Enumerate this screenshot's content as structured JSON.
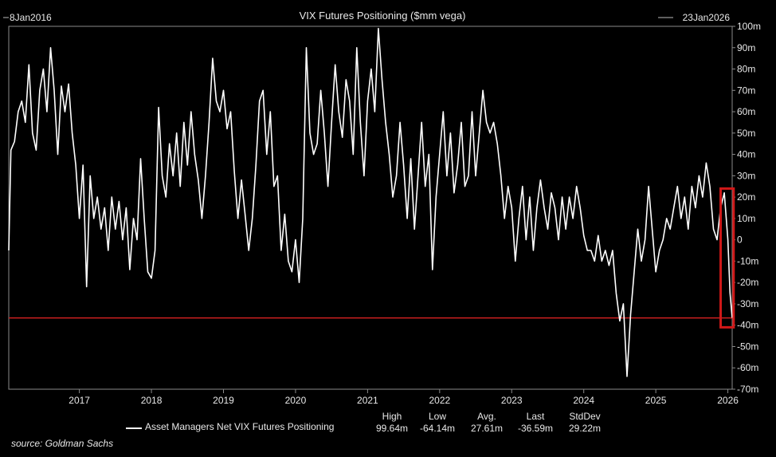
{
  "chart_data": {
    "type": "line",
    "title": "VIX Futures Positioning ($mm vega)",
    "start_label": "8Jan2016",
    "end_label": "23Jan2026",
    "x_range": [
      2016.02,
      2026.06
    ],
    "y_range": [
      -70,
      100
    ],
    "y_ticks": [
      "100m",
      "90m",
      "80m",
      "70m",
      "60m",
      "50m",
      "40m",
      "30m",
      "20m",
      "10m",
      "0",
      "-10m",
      "-20m",
      "-30m",
      "-40m",
      "-50m",
      "-60m",
      "-70m"
    ],
    "x_ticks": [
      "2017",
      "2018",
      "2019",
      "2020",
      "2021",
      "2022",
      "2023",
      "2024",
      "2025",
      "2026"
    ],
    "grid": false,
    "series": [
      {
        "name": "Asset Managers Net VIX Futures Positioning",
        "color": "#ffffff",
        "points": [
          [
            2016.02,
            -5
          ],
          [
            2016.05,
            42
          ],
          [
            2016.1,
            46
          ],
          [
            2016.15,
            60
          ],
          [
            2016.2,
            65
          ],
          [
            2016.25,
            55
          ],
          [
            2016.3,
            82
          ],
          [
            2016.35,
            50
          ],
          [
            2016.4,
            42
          ],
          [
            2016.45,
            70
          ],
          [
            2016.5,
            80
          ],
          [
            2016.55,
            60
          ],
          [
            2016.6,
            90
          ],
          [
            2016.65,
            70
          ],
          [
            2016.7,
            40
          ],
          [
            2016.75,
            72
          ],
          [
            2016.8,
            60
          ],
          [
            2016.85,
            73
          ],
          [
            2016.9,
            50
          ],
          [
            2016.95,
            35
          ],
          [
            2017.0,
            10
          ],
          [
            2017.05,
            35
          ],
          [
            2017.1,
            -22
          ],
          [
            2017.15,
            30
          ],
          [
            2017.2,
            10
          ],
          [
            2017.25,
            20
          ],
          [
            2017.3,
            5
          ],
          [
            2017.35,
            15
          ],
          [
            2017.4,
            -5
          ],
          [
            2017.45,
            20
          ],
          [
            2017.5,
            5
          ],
          [
            2017.55,
            18
          ],
          [
            2017.6,
            0
          ],
          [
            2017.65,
            15
          ],
          [
            2017.7,
            -14
          ],
          [
            2017.75,
            10
          ],
          [
            2017.8,
            0
          ],
          [
            2017.85,
            38
          ],
          [
            2017.9,
            10
          ],
          [
            2017.95,
            -15
          ],
          [
            2018.0,
            -18
          ],
          [
            2018.05,
            -5
          ],
          [
            2018.1,
            62
          ],
          [
            2018.15,
            30
          ],
          [
            2018.2,
            20
          ],
          [
            2018.25,
            45
          ],
          [
            2018.3,
            30
          ],
          [
            2018.35,
            50
          ],
          [
            2018.4,
            25
          ],
          [
            2018.45,
            55
          ],
          [
            2018.5,
            35
          ],
          [
            2018.55,
            60
          ],
          [
            2018.6,
            40
          ],
          [
            2018.65,
            28
          ],
          [
            2018.7,
            10
          ],
          [
            2018.75,
            30
          ],
          [
            2018.8,
            55
          ],
          [
            2018.85,
            85
          ],
          [
            2018.9,
            65
          ],
          [
            2018.95,
            60
          ],
          [
            2019.0,
            70
          ],
          [
            2019.05,
            52
          ],
          [
            2019.1,
            60
          ],
          [
            2019.15,
            32
          ],
          [
            2019.2,
            10
          ],
          [
            2019.25,
            28
          ],
          [
            2019.3,
            12
          ],
          [
            2019.35,
            -5
          ],
          [
            2019.4,
            10
          ],
          [
            2019.45,
            35
          ],
          [
            2019.5,
            65
          ],
          [
            2019.55,
            70
          ],
          [
            2019.6,
            40
          ],
          [
            2019.65,
            60
          ],
          [
            2019.7,
            25
          ],
          [
            2019.75,
            30
          ],
          [
            2019.8,
            -5
          ],
          [
            2019.85,
            12
          ],
          [
            2019.9,
            -10
          ],
          [
            2019.95,
            -15
          ],
          [
            2020.0,
            0
          ],
          [
            2020.05,
            -20
          ],
          [
            2020.1,
            10
          ],
          [
            2020.15,
            90
          ],
          [
            2020.2,
            50
          ],
          [
            2020.25,
            40
          ],
          [
            2020.3,
            45
          ],
          [
            2020.35,
            70
          ],
          [
            2020.4,
            50
          ],
          [
            2020.45,
            25
          ],
          [
            2020.5,
            55
          ],
          [
            2020.55,
            82
          ],
          [
            2020.6,
            60
          ],
          [
            2020.65,
            48
          ],
          [
            2020.7,
            75
          ],
          [
            2020.75,
            65
          ],
          [
            2020.8,
            40
          ],
          [
            2020.85,
            90
          ],
          [
            2020.9,
            55
          ],
          [
            2020.95,
            30
          ],
          [
            2021.0,
            65
          ],
          [
            2021.05,
            80
          ],
          [
            2021.1,
            60
          ],
          [
            2021.15,
            99
          ],
          [
            2021.2,
            75
          ],
          [
            2021.25,
            55
          ],
          [
            2021.3,
            40
          ],
          [
            2021.35,
            20
          ],
          [
            2021.4,
            30
          ],
          [
            2021.45,
            55
          ],
          [
            2021.5,
            35
          ],
          [
            2021.55,
            10
          ],
          [
            2021.6,
            38
          ],
          [
            2021.65,
            5
          ],
          [
            2021.7,
            30
          ],
          [
            2021.75,
            55
          ],
          [
            2021.8,
            25
          ],
          [
            2021.85,
            40
          ],
          [
            2021.9,
            -14
          ],
          [
            2021.95,
            20
          ],
          [
            2022.0,
            40
          ],
          [
            2022.05,
            60
          ],
          [
            2022.1,
            30
          ],
          [
            2022.15,
            50
          ],
          [
            2022.2,
            22
          ],
          [
            2022.25,
            35
          ],
          [
            2022.3,
            55
          ],
          [
            2022.35,
            25
          ],
          [
            2022.4,
            30
          ],
          [
            2022.45,
            60
          ],
          [
            2022.5,
            30
          ],
          [
            2022.55,
            50
          ],
          [
            2022.6,
            70
          ],
          [
            2022.65,
            55
          ],
          [
            2022.7,
            50
          ],
          [
            2022.75,
            55
          ],
          [
            2022.8,
            45
          ],
          [
            2022.85,
            30
          ],
          [
            2022.9,
            10
          ],
          [
            2022.95,
            25
          ],
          [
            2023.0,
            15
          ],
          [
            2023.05,
            -10
          ],
          [
            2023.1,
            10
          ],
          [
            2023.15,
            25
          ],
          [
            2023.2,
            0
          ],
          [
            2023.25,
            20
          ],
          [
            2023.3,
            -5
          ],
          [
            2023.35,
            15
          ],
          [
            2023.4,
            28
          ],
          [
            2023.45,
            15
          ],
          [
            2023.5,
            5
          ],
          [
            2023.55,
            22
          ],
          [
            2023.6,
            15
          ],
          [
            2023.65,
            0
          ],
          [
            2023.7,
            20
          ],
          [
            2023.75,
            5
          ],
          [
            2023.8,
            20
          ],
          [
            2023.85,
            10
          ],
          [
            2023.9,
            25
          ],
          [
            2023.95,
            15
          ],
          [
            2024.0,
            2
          ],
          [
            2024.05,
            -5
          ],
          [
            2024.1,
            -5
          ],
          [
            2024.15,
            -10
          ],
          [
            2024.2,
            2
          ],
          [
            2024.25,
            -10
          ],
          [
            2024.3,
            -5
          ],
          [
            2024.35,
            -12
          ],
          [
            2024.4,
            -5
          ],
          [
            2024.45,
            -25
          ],
          [
            2024.5,
            -38
          ],
          [
            2024.55,
            -30
          ],
          [
            2024.6,
            -64
          ],
          [
            2024.65,
            -35
          ],
          [
            2024.7,
            -15
          ],
          [
            2024.75,
            5
          ],
          [
            2024.8,
            -10
          ],
          [
            2024.85,
            0
          ],
          [
            2024.9,
            25
          ],
          [
            2024.95,
            5
          ],
          [
            2025.0,
            -15
          ],
          [
            2025.05,
            -5
          ],
          [
            2025.1,
            0
          ],
          [
            2025.15,
            10
          ],
          [
            2025.2,
            5
          ],
          [
            2025.25,
            15
          ],
          [
            2025.3,
            25
          ],
          [
            2025.35,
            10
          ],
          [
            2025.4,
            20
          ],
          [
            2025.45,
            5
          ],
          [
            2025.5,
            25
          ],
          [
            2025.55,
            15
          ],
          [
            2025.6,
            30
          ],
          [
            2025.65,
            20
          ],
          [
            2025.7,
            36
          ],
          [
            2025.75,
            25
          ],
          [
            2025.8,
            5
          ],
          [
            2025.85,
            0
          ],
          [
            2025.9,
            15
          ],
          [
            2025.95,
            22
          ],
          [
            2026.0,
            0
          ],
          [
            2026.03,
            -25
          ],
          [
            2026.06,
            -36.59
          ]
        ]
      }
    ],
    "horizontal_line": {
      "value": -36.59,
      "color": "#cc2020"
    },
    "highlight_box": {
      "x_range": [
        2025.9,
        2026.08
      ],
      "y_range": [
        -41,
        24
      ],
      "color": "#d01818"
    },
    "stats": {
      "series_label": "Asset Managers Net VIX Futures Positioning",
      "headers": [
        "High",
        "Low",
        "Avg.",
        "Last",
        "StdDev"
      ],
      "values": [
        "99.64m",
        "-64.14m",
        "27.61m",
        "-36.59m",
        "29.22m"
      ]
    },
    "legend_placement": "bottom"
  },
  "source": "source: Goldman Sachs"
}
